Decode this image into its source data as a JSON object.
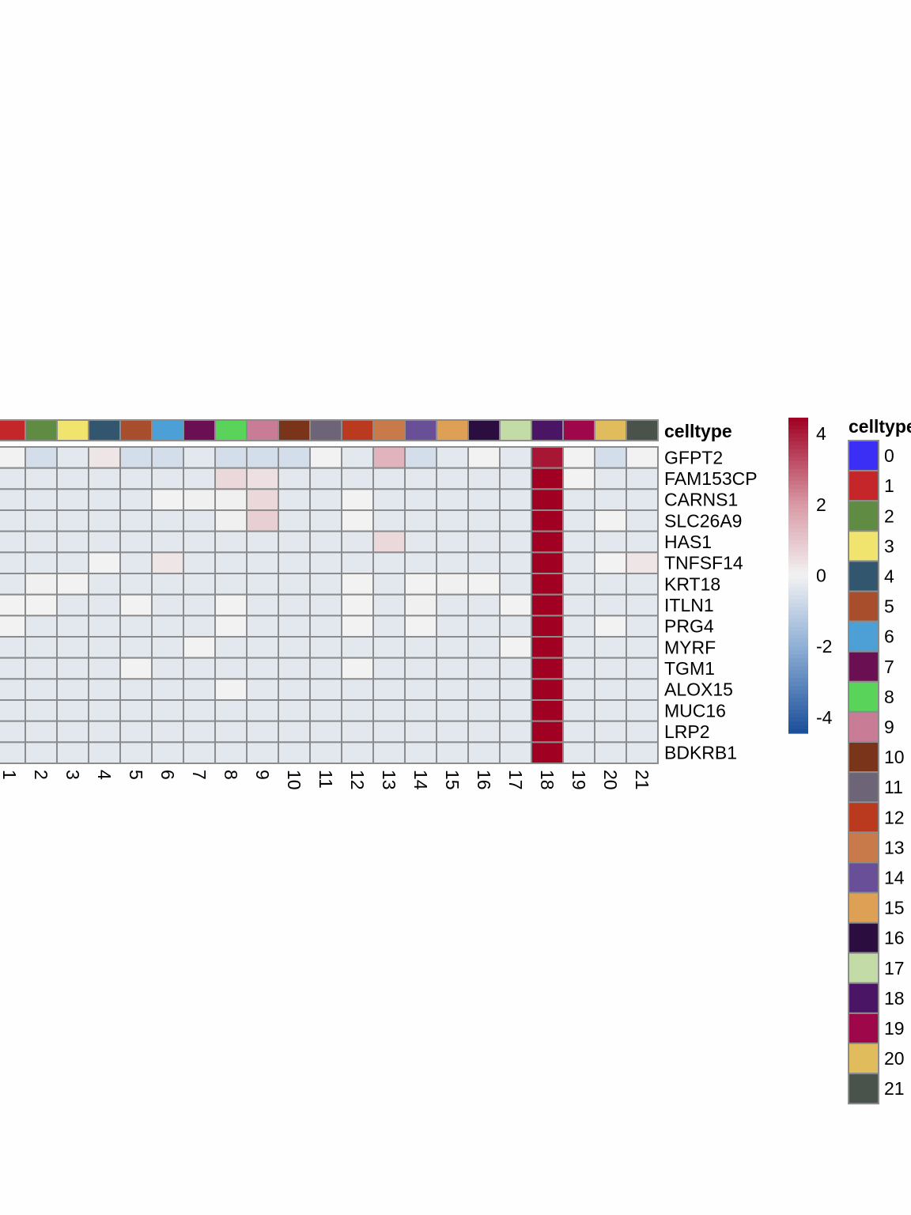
{
  "chart_data": {
    "type": "heatmap",
    "annotation_title": "celltype",
    "legend_title": "celltype",
    "columns": [
      "1",
      "2",
      "3",
      "4",
      "5",
      "6",
      "7",
      "8",
      "9",
      "10",
      "11",
      "12",
      "13",
      "14",
      "15",
      "16",
      "17",
      "18",
      "19",
      "20",
      "21"
    ],
    "rows": [
      "GFPT2",
      "FAM153CP",
      "CARNS1",
      "SLC26A9",
      "HAS1",
      "TNFSF14",
      "KRT18",
      "ITLN1",
      "PRG4",
      "MYRF",
      "TGM1",
      "ALOX15",
      "MUC16",
      "LRP2",
      "BDKRB1"
    ],
    "values": [
      [
        0,
        -0.6,
        -0.3,
        0.3,
        -0.6,
        -0.6,
        -0.3,
        -0.6,
        -0.6,
        -0.6,
        0,
        -0.3,
        1.4,
        -0.6,
        -0.3,
        0,
        -0.3,
        4.1,
        0,
        -0.6,
        0
      ],
      [
        -0.3,
        -0.3,
        -0.3,
        -0.3,
        -0.3,
        -0.3,
        -0.3,
        0.6,
        0.4,
        -0.3,
        -0.3,
        -0.3,
        -0.3,
        -0.3,
        -0.3,
        -0.3,
        -0.3,
        4.45,
        0,
        -0.3,
        -0.3
      ],
      [
        -0.3,
        -0.3,
        -0.3,
        -0.3,
        -0.3,
        0,
        0.05,
        0.05,
        0.6,
        -0.3,
        -0.3,
        0,
        -0.3,
        -0.3,
        -0.3,
        -0.3,
        -0.3,
        4.45,
        -0.3,
        -0.3,
        -0.3
      ],
      [
        -0.3,
        -0.3,
        -0.3,
        -0.3,
        -0.3,
        -0.3,
        -0.3,
        0.05,
        0.8,
        -0.3,
        -0.3,
        0,
        -0.3,
        -0.3,
        -0.3,
        -0.3,
        -0.3,
        4.45,
        -0.3,
        0,
        -0.3
      ],
      [
        -0.3,
        -0.3,
        -0.3,
        -0.3,
        -0.3,
        -0.3,
        -0.3,
        -0.3,
        -0.3,
        -0.3,
        -0.3,
        -0.3,
        0.6,
        -0.3,
        -0.3,
        -0.3,
        -0.3,
        4.45,
        -0.3,
        -0.3,
        -0.3
      ],
      [
        -0.3,
        -0.3,
        -0.3,
        0,
        -0.3,
        0.3,
        -0.3,
        -0.3,
        -0.3,
        -0.3,
        -0.3,
        -0.3,
        -0.3,
        -0.3,
        -0.3,
        -0.3,
        -0.3,
        4.45,
        -0.3,
        0,
        0.3
      ],
      [
        -0.3,
        0.05,
        0,
        -0.3,
        -0.3,
        -0.3,
        -0.3,
        -0.3,
        -0.3,
        -0.3,
        -0.3,
        0,
        -0.3,
        0,
        0.05,
        0,
        -0.3,
        4.45,
        -0.3,
        -0.3,
        -0.3
      ],
      [
        0,
        0,
        -0.3,
        -0.3,
        0,
        -0.3,
        -0.3,
        0,
        -0.3,
        -0.3,
        -0.3,
        0,
        -0.3,
        0.05,
        -0.3,
        -0.3,
        0,
        4.45,
        -0.3,
        -0.3,
        -0.3
      ],
      [
        0,
        -0.3,
        -0.3,
        -0.3,
        -0.3,
        -0.3,
        -0.3,
        0,
        -0.3,
        -0.3,
        -0.3,
        0,
        -0.3,
        0,
        -0.3,
        -0.3,
        -0.3,
        4.45,
        -0.3,
        0,
        -0.3
      ],
      [
        -0.3,
        -0.3,
        -0.3,
        -0.3,
        -0.3,
        -0.3,
        0,
        -0.3,
        -0.3,
        -0.3,
        -0.3,
        -0.3,
        -0.3,
        -0.3,
        -0.3,
        -0.3,
        0,
        4.45,
        -0.3,
        -0.3,
        -0.3
      ],
      [
        -0.3,
        -0.3,
        -0.3,
        -0.3,
        0,
        -0.3,
        -0.3,
        -0.3,
        -0.3,
        -0.3,
        -0.3,
        0,
        -0.3,
        -0.3,
        -0.3,
        -0.3,
        -0.3,
        4.45,
        -0.3,
        -0.3,
        -0.3
      ],
      [
        -0.3,
        -0.3,
        -0.3,
        -0.3,
        -0.3,
        -0.3,
        -0.3,
        0,
        -0.3,
        -0.3,
        -0.3,
        -0.3,
        -0.3,
        -0.3,
        -0.3,
        -0.3,
        -0.3,
        4.45,
        -0.3,
        -0.3,
        -0.3
      ],
      [
        -0.3,
        -0.3,
        -0.3,
        -0.3,
        -0.3,
        -0.3,
        -0.3,
        -0.3,
        -0.3,
        -0.3,
        -0.3,
        -0.3,
        -0.3,
        -0.3,
        -0.3,
        -0.3,
        -0.3,
        4.45,
        -0.3,
        -0.3,
        -0.3
      ],
      [
        -0.3,
        -0.3,
        -0.3,
        -0.3,
        -0.3,
        -0.3,
        -0.3,
        -0.3,
        -0.3,
        -0.3,
        -0.3,
        -0.3,
        -0.3,
        -0.3,
        -0.3,
        -0.3,
        -0.3,
        4.45,
        -0.3,
        -0.3,
        -0.3
      ],
      [
        -0.3,
        -0.3,
        -0.3,
        -0.3,
        -0.3,
        -0.3,
        -0.3,
        -0.3,
        -0.3,
        -0.3,
        -0.3,
        -0.3,
        -0.3,
        -0.3,
        -0.3,
        -0.3,
        -0.3,
        4.45,
        -0.3,
        -0.3,
        -0.3
      ]
    ],
    "color_scale": {
      "range": [
        -4.45,
        4.45
      ],
      "ticks": [
        4,
        2,
        0,
        -2,
        -4
      ],
      "tick_labels": [
        "4",
        "2",
        "0",
        "-2",
        "-4"
      ],
      "stops": [
        {
          "value": -4.45,
          "color": "#1a4e9a"
        },
        {
          "value": -2,
          "color": "#8fb0d6"
        },
        {
          "value": 0,
          "color": "#f2f2f2"
        },
        {
          "value": 2,
          "color": "#d99aa6"
        },
        {
          "value": 4.45,
          "color": "#a00022"
        }
      ]
    },
    "celltype_legend": [
      {
        "label": "0",
        "color": "#3b2ff5"
      },
      {
        "label": "1",
        "color": "#c4262a"
      },
      {
        "label": "2",
        "color": "#5f8b43"
      },
      {
        "label": "3",
        "color": "#f0e46f"
      },
      {
        "label": "4",
        "color": "#33566f"
      },
      {
        "label": "5",
        "color": "#a94e2c"
      },
      {
        "label": "6",
        "color": "#4da0d6"
      },
      {
        "label": "7",
        "color": "#6a0f51"
      },
      {
        "label": "8",
        "color": "#5ad35a"
      },
      {
        "label": "9",
        "color": "#c97c95"
      },
      {
        "label": "10",
        "color": "#7a341a"
      },
      {
        "label": "11",
        "color": "#6e6478"
      },
      {
        "label": "12",
        "color": "#b93a1f"
      },
      {
        "label": "13",
        "color": "#c97a4a"
      },
      {
        "label": "14",
        "color": "#684f97"
      },
      {
        "label": "15",
        "color": "#dea055"
      },
      {
        "label": "16",
        "color": "#2c0d3f"
      },
      {
        "label": "17",
        "color": "#c3dba7"
      },
      {
        "label": "18",
        "color": "#4a1564"
      },
      {
        "label": "19",
        "color": "#9f074b"
      },
      {
        "label": "20",
        "color": "#e0bc5c"
      },
      {
        "label": "21",
        "color": "#4a534b"
      }
    ],
    "grid_color": "#8c8c8c"
  }
}
